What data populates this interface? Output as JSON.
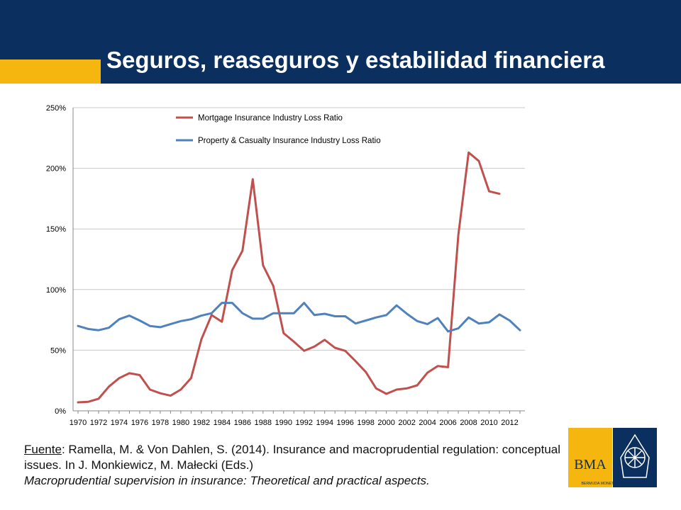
{
  "header": {
    "title": "Seguros, reaseguros y estabilidad financiera",
    "background": "#0b2f5e",
    "accent": "#f5b70f"
  },
  "chart_data": {
    "type": "line",
    "title": "",
    "xlabel": "",
    "ylabel": "",
    "x": [
      1970,
      1971,
      1972,
      1973,
      1974,
      1975,
      1976,
      1977,
      1978,
      1979,
      1980,
      1981,
      1982,
      1983,
      1984,
      1985,
      1986,
      1987,
      1988,
      1989,
      1990,
      1991,
      1992,
      1993,
      1994,
      1995,
      1996,
      1997,
      1998,
      1999,
      2000,
      2001,
      2002,
      2003,
      2004,
      2005,
      2006,
      2007,
      2008,
      2009,
      2010,
      2011,
      2012,
      2013
    ],
    "x_tick_labels": [
      "1970",
      "1972",
      "1974",
      "1976",
      "1978",
      "1980",
      "1982",
      "1984",
      "1986",
      "1988",
      "1990",
      "1992",
      "1994",
      "1996",
      "1998",
      "2000",
      "2002",
      "2004",
      "2006",
      "2008",
      "2010",
      "2012"
    ],
    "ylim": [
      0,
      250
    ],
    "y_ticks": [
      0,
      50,
      100,
      150,
      200,
      250
    ],
    "y_tick_labels": [
      "0%",
      "50%",
      "100%",
      "150%",
      "200%",
      "250%"
    ],
    "grid": true,
    "legend_position": "top-left",
    "series": [
      {
        "name": "Mortgage Insurance Industry Loss Ratio",
        "color": "#c0504d",
        "values": [
          7,
          7.5,
          10,
          20,
          27,
          31,
          29.5,
          17.5,
          14.5,
          12.5,
          17.5,
          27,
          59,
          79,
          73.5,
          116,
          132,
          191,
          120,
          103,
          64,
          57,
          49.5,
          53,
          58.5,
          52,
          49.5,
          41,
          32,
          18.5,
          14,
          17.5,
          18.5,
          21,
          31.5,
          37,
          36,
          145,
          213,
          206,
          181,
          179,
          null,
          null
        ]
      },
      {
        "name": "Property & Casualty Insurance Industry Loss Ratio",
        "color": "#4f81bd",
        "values": [
          70,
          67.5,
          66.5,
          68.5,
          75.5,
          78.5,
          74.5,
          70,
          69,
          71.5,
          74,
          75.5,
          78.5,
          80.5,
          89,
          89,
          80.5,
          76,
          76,
          80.5,
          80.5,
          80.5,
          89,
          79,
          80,
          78,
          78,
          72,
          74.5,
          77,
          79,
          87,
          80,
          74,
          71.5,
          76.5,
          65.5,
          68,
          77,
          72,
          73,
          79.5,
          74.5,
          66.5
        ]
      }
    ]
  },
  "caption": {
    "fuente_label": "Fuente",
    "citation": ":  Ramella, M. & Von Dahlen, S. (2014). Insurance and macroprudential regulation: conceptual issues. In J. Monkiewicz, M. Małecki (Eds.)",
    "book_title": "Macroprudential supervision in insurance: Theoretical and practical aspects."
  },
  "logo": {
    "abbr": "BMA",
    "name": "BERMUDA MONETARY AUTHORITY",
    "gold": "#f5b70f",
    "navy": "#0b2f5e"
  }
}
